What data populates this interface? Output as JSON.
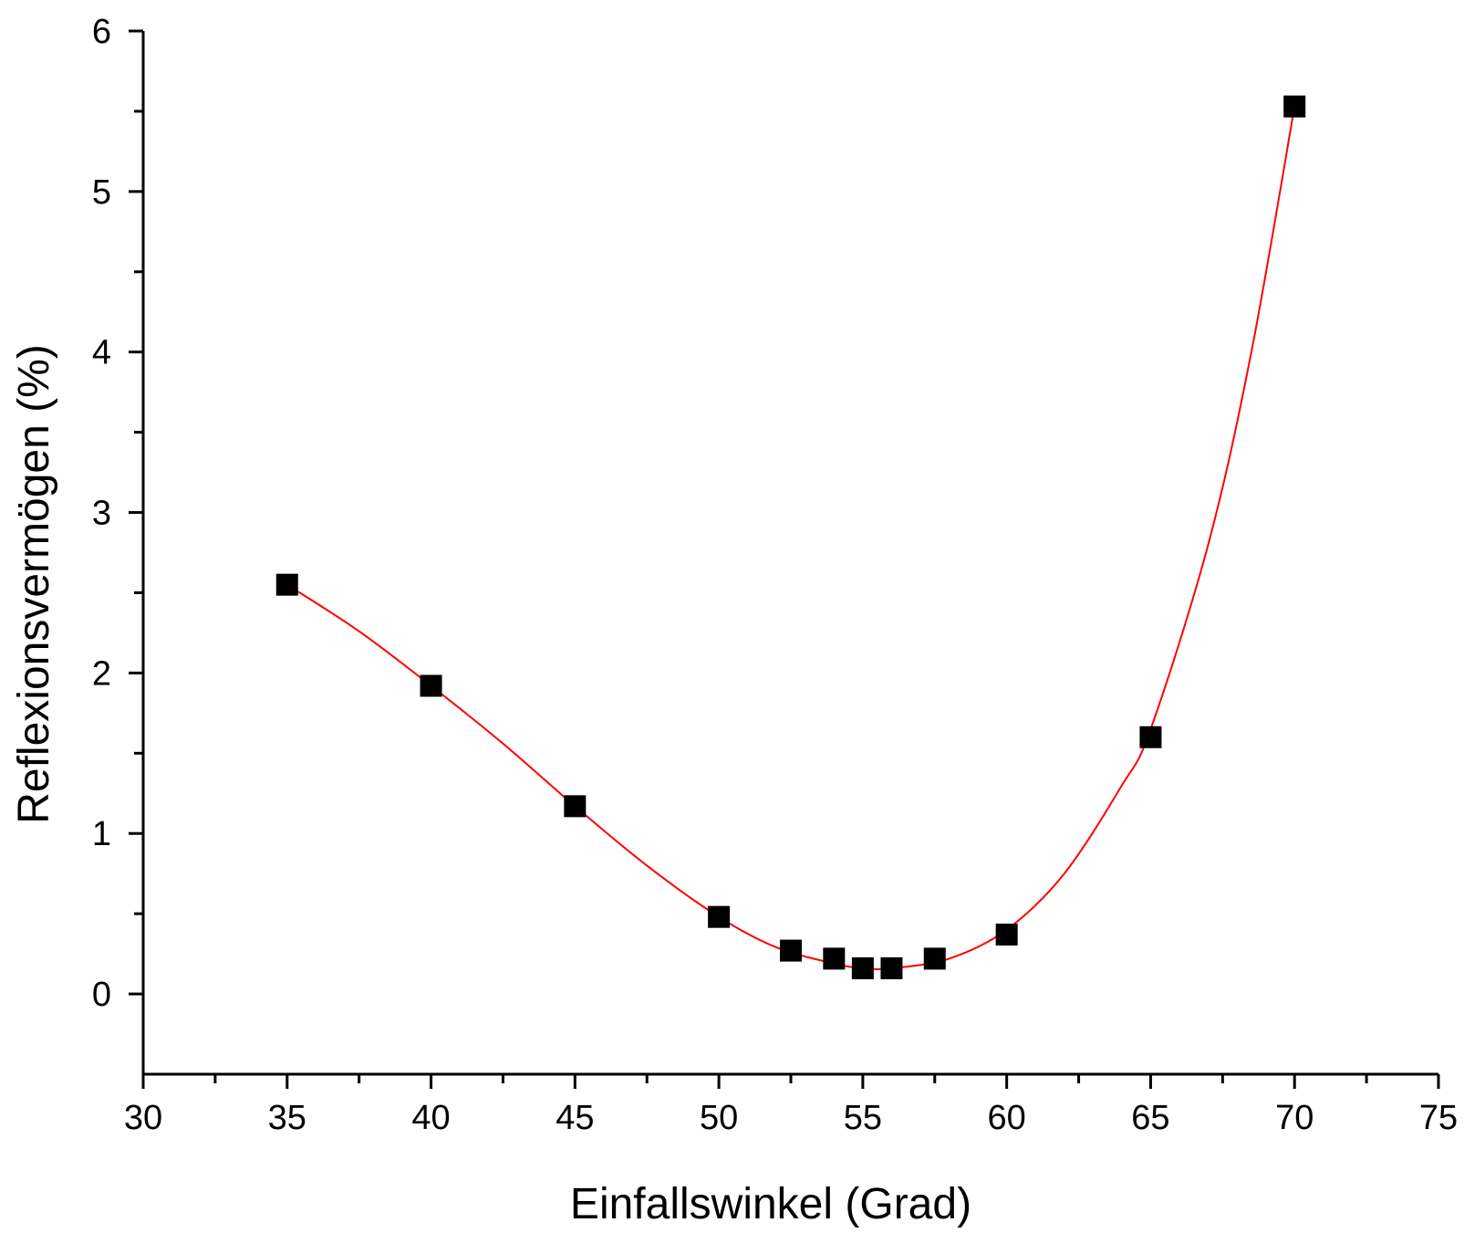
{
  "chart_data": {
    "type": "scatter",
    "title": "",
    "xlabel": "Einfallswinkel (Grad)",
    "ylabel": "Reflexionsvermögen (%)",
    "xlim": [
      30,
      75
    ],
    "ylim": [
      -0.5,
      6
    ],
    "xticks": [
      30,
      35,
      40,
      45,
      50,
      55,
      60,
      65,
      70,
      75
    ],
    "yticks": [
      0,
      1,
      2,
      3,
      4,
      5,
      6
    ],
    "grid": false,
    "legend": "none",
    "series": [
      {
        "marker": "square",
        "color": "#000000",
        "points": [
          {
            "x": 35,
            "y": 2.55
          },
          {
            "x": 40,
            "y": 1.92
          },
          {
            "x": 45,
            "y": 1.17
          },
          {
            "x": 50,
            "y": 0.48
          },
          {
            "x": 52.5,
            "y": 0.27
          },
          {
            "x": 54,
            "y": 0.22
          },
          {
            "x": 55,
            "y": 0.16
          },
          {
            "x": 56,
            "y": 0.16
          },
          {
            "x": 57.5,
            "y": 0.22
          },
          {
            "x": 60,
            "y": 0.37
          },
          {
            "x": 65,
            "y": 1.6
          },
          {
            "x": 70,
            "y": 5.53
          }
        ]
      },
      {
        "type": "line",
        "color": "#ff0000",
        "smooth": true,
        "points": [
          {
            "x": 35,
            "y": 2.55
          },
          {
            "x": 37.5,
            "y": 2.26
          },
          {
            "x": 40,
            "y": 1.92
          },
          {
            "x": 42.5,
            "y": 1.56
          },
          {
            "x": 45,
            "y": 1.17
          },
          {
            "x": 47.5,
            "y": 0.8
          },
          {
            "x": 50,
            "y": 0.48
          },
          {
            "x": 52,
            "y": 0.29
          },
          {
            "x": 54,
            "y": 0.19
          },
          {
            "x": 55,
            "y": 0.16
          },
          {
            "x": 56,
            "y": 0.16
          },
          {
            "x": 58,
            "y": 0.22
          },
          {
            "x": 60,
            "y": 0.4
          },
          {
            "x": 62,
            "y": 0.75
          },
          {
            "x": 64,
            "y": 1.3
          },
          {
            "x": 65,
            "y": 1.65
          },
          {
            "x": 67,
            "y": 2.8
          },
          {
            "x": 68.5,
            "y": 4.0
          },
          {
            "x": 70,
            "y": 5.53
          }
        ]
      }
    ]
  }
}
